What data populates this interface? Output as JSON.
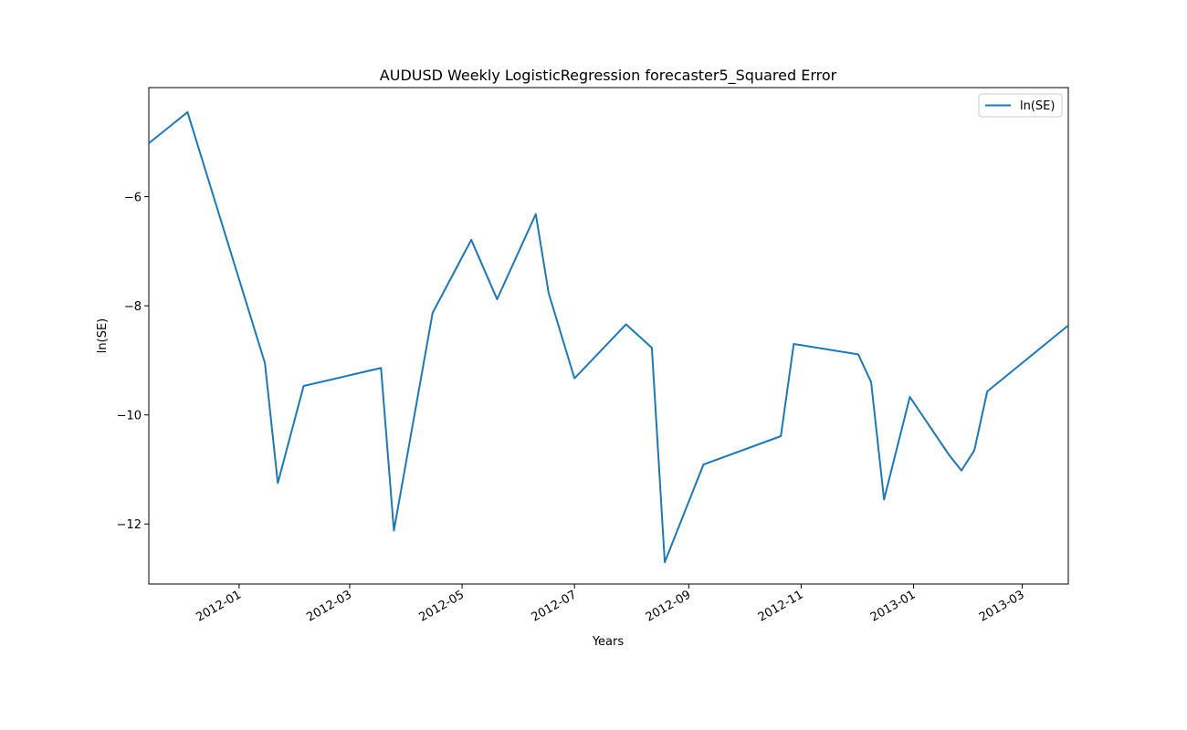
{
  "chart_data": {
    "type": "line",
    "title": "AUDUSD Weekly LogisticRegression forecaster5_Squared Error",
    "xlabel": "Years",
    "ylabel": "ln(SE)",
    "xlim": [
      "2011-11-13",
      "2013-03-26"
    ],
    "ylim": [
      -13.1,
      -4.0
    ],
    "x_ticks": [
      "2012-01",
      "2012-03",
      "2012-05",
      "2012-07",
      "2012-09",
      "2012-11",
      "2013-01",
      "2013-03"
    ],
    "y_ticks": [
      -6,
      -8,
      -10,
      -12
    ],
    "grid": false,
    "legend_position": "top-right",
    "series": [
      {
        "name": "ln(SE)",
        "color": "#1f77b4",
        "points": [
          {
            "x": "2011-11-13",
            "y": -5.02
          },
          {
            "x": "2011-12-04",
            "y": -4.45
          },
          {
            "x": "2012-01-15",
            "y": -9.05
          },
          {
            "x": "2012-01-22",
            "y": -11.25
          },
          {
            "x": "2012-02-05",
            "y": -9.47
          },
          {
            "x": "2012-03-18",
            "y": -9.14
          },
          {
            "x": "2012-03-25",
            "y": -12.12
          },
          {
            "x": "2012-04-15",
            "y": -8.13
          },
          {
            "x": "2012-05-06",
            "y": -6.79
          },
          {
            "x": "2012-05-20",
            "y": -7.88
          },
          {
            "x": "2012-06-10",
            "y": -6.32
          },
          {
            "x": "2012-06-17",
            "y": -7.77
          },
          {
            "x": "2012-07-01",
            "y": -9.33
          },
          {
            "x": "2012-07-29",
            "y": -8.34
          },
          {
            "x": "2012-08-12",
            "y": -8.77
          },
          {
            "x": "2012-08-19",
            "y": -12.7
          },
          {
            "x": "2012-09-09",
            "y": -10.91
          },
          {
            "x": "2012-10-21",
            "y": -10.39
          },
          {
            "x": "2012-10-28",
            "y": -8.7
          },
          {
            "x": "2012-12-02",
            "y": -8.89
          },
          {
            "x": "2012-12-09",
            "y": -9.4
          },
          {
            "x": "2012-12-16",
            "y": -11.55
          },
          {
            "x": "2012-12-30",
            "y": -9.67
          },
          {
            "x": "2013-01-20",
            "y": -10.72
          },
          {
            "x": "2013-01-27",
            "y": -11.02
          },
          {
            "x": "2013-02-03",
            "y": -10.65
          },
          {
            "x": "2013-02-10",
            "y": -9.57
          },
          {
            "x": "2013-03-26",
            "y": -8.36
          }
        ]
      }
    ]
  }
}
